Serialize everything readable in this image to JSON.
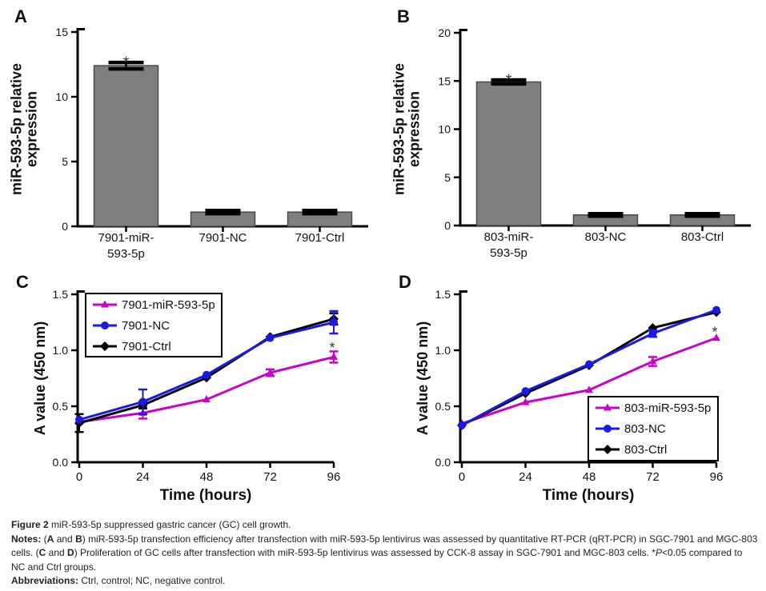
{
  "panels": {
    "A": {
      "letter": "A"
    },
    "B": {
      "letter": "B"
    },
    "C": {
      "letter": "C"
    },
    "D": {
      "letter": "D"
    }
  },
  "colors": {
    "bar_fill": "#7f7f7f",
    "bar_edge": "#4a4a4a",
    "axis": "#000000",
    "magenta": "#cc00cc",
    "blue": "#1a1ae6",
    "black": "#000000",
    "star": "#3a3a3a"
  },
  "chart_data": [
    {
      "id": "A",
      "type": "bar",
      "ylabel": "miR-593-5p relative expression",
      "ylabel_lines": [
        "miR-593-5p relative",
        "expression"
      ],
      "ylim": [
        0,
        15
      ],
      "yticks": [
        {
          "v": 0,
          "label": "0"
        },
        {
          "v": 5,
          "label": "5"
        },
        {
          "v": 10,
          "label": "10"
        },
        {
          "v": 15,
          "label": "15"
        }
      ],
      "categories": [
        [
          "7901-miR-",
          "593-5p"
        ],
        [
          "7901-NC"
        ],
        [
          "7901-Ctrl"
        ]
      ],
      "values": [
        12.4,
        1.1,
        1.1
      ],
      "errors": [
        0.25,
        0.12,
        0.12
      ],
      "significance": [
        {
          "index": 0,
          "symbol": "*"
        }
      ],
      "bar_fill": "#7f7f7f",
      "bar_edge": "#4a4a4a"
    },
    {
      "id": "B",
      "type": "bar",
      "ylabel": "miR-593-5p relative expression",
      "ylabel_lines": [
        "miR-593-5p relative",
        "expression"
      ],
      "ylim": [
        0,
        20
      ],
      "yticks": [
        {
          "v": 0,
          "label": "0"
        },
        {
          "v": 5,
          "label": "5"
        },
        {
          "v": 10,
          "label": "10"
        },
        {
          "v": 15,
          "label": "15"
        },
        {
          "v": 20,
          "label": "20"
        }
      ],
      "categories": [
        [
          "803-miR-",
          "593-5p"
        ],
        [
          "803-NC"
        ],
        [
          "803-Ctrl"
        ]
      ],
      "values": [
        14.9,
        1.1,
        1.1
      ],
      "errors": [
        0.2,
        0.12,
        0.12
      ],
      "significance": [
        {
          "index": 0,
          "symbol": "*"
        }
      ],
      "bar_fill": "#7f7f7f",
      "bar_edge": "#4a4a4a"
    },
    {
      "id": "C",
      "type": "line",
      "xlabel": "Time (hours)",
      "ylabel": "A value (450 nm)",
      "ylabel_lines": [
        "A value (450 nm)"
      ],
      "xlim": [
        0,
        96
      ],
      "ylim": [
        0,
        1.5
      ],
      "xticks": [
        {
          "v": 0,
          "label": "0"
        },
        {
          "v": 24,
          "label": "24"
        },
        {
          "v": 48,
          "label": "48"
        },
        {
          "v": 72,
          "label": "72"
        },
        {
          "v": 96,
          "label": "96"
        }
      ],
      "yticks": [
        {
          "v": 0,
          "label": "0.0"
        },
        {
          "v": 0.5,
          "label": "0.5"
        },
        {
          "v": 1,
          "label": "1.0"
        },
        {
          "v": 1.5,
          "label": "1.5"
        }
      ],
      "x": [
        0,
        24,
        48,
        72,
        96
      ],
      "series": [
        {
          "name": "7901-miR-593-5p",
          "color": "#cc00cc",
          "marker": "triangle",
          "values": [
            0.36,
            0.44,
            0.56,
            0.8,
            0.94
          ],
          "errors": [
            0.02,
            0.05,
            0.02,
            0.03,
            0.05
          ]
        },
        {
          "name": "7901-NC",
          "color": "#1a1ae6",
          "marker": "circle",
          "values": [
            0.38,
            0.54,
            0.78,
            1.11,
            1.25
          ],
          "errors": [
            0.02,
            0.11,
            0.02,
            0.02,
            0.1
          ]
        },
        {
          "name": "7901-Ctrl",
          "color": "#000000",
          "marker": "diamond",
          "values": [
            0.35,
            0.51,
            0.755,
            1.12,
            1.28
          ],
          "errors": [
            0.08,
            0.03,
            0.02,
            0.02,
            0.05
          ]
        }
      ],
      "legend_position": "top-left",
      "significance": [
        {
          "x": 96,
          "y": 1.05,
          "symbol": "*"
        }
      ]
    },
    {
      "id": "D",
      "type": "line",
      "xlabel": "Time (hours)",
      "ylabel": "A value (450 nm)",
      "ylabel_lines": [
        "A value (450 nm)"
      ],
      "xlim": [
        0,
        96
      ],
      "ylim": [
        0,
        1.5
      ],
      "xticks": [
        {
          "v": 0,
          "label": "0"
        },
        {
          "v": 24,
          "label": "24"
        },
        {
          "v": 48,
          "label": "48"
        },
        {
          "v": 72,
          "label": "72"
        },
        {
          "v": 96,
          "label": "96"
        }
      ],
      "yticks": [
        {
          "v": 0,
          "label": "0.0"
        },
        {
          "v": 0.5,
          "label": "0.5"
        },
        {
          "v": 1,
          "label": "1.0"
        },
        {
          "v": 1.5,
          "label": "1.5"
        }
      ],
      "x": [
        0,
        24,
        48,
        72,
        96
      ],
      "series": [
        {
          "name": "803-miR-593-5p",
          "color": "#cc00cc",
          "marker": "triangle",
          "values": [
            0.345,
            0.535,
            0.645,
            0.9,
            1.11
          ],
          "errors": [
            0.02,
            0.015,
            0.015,
            0.04,
            0.02
          ]
        },
        {
          "name": "803-NC",
          "color": "#1a1ae6",
          "marker": "circle",
          "values": [
            0.33,
            0.635,
            0.875,
            1.15,
            1.36
          ],
          "errors": [
            0.01,
            0.01,
            0.01,
            0.03,
            0.02
          ]
        },
        {
          "name": "803-Ctrl",
          "color": "#000000",
          "marker": "diamond",
          "values": [
            0.33,
            0.615,
            0.865,
            1.2,
            1.34
          ],
          "errors": [
            0.01,
            0.01,
            0.01,
            0.02,
            0.02
          ]
        }
      ],
      "legend_position": "bottom-right",
      "significance": [
        {
          "x": 96,
          "y": 1.19,
          "symbol": "*"
        }
      ]
    }
  ],
  "caption": {
    "lines": [
      {
        "runs": [
          {
            "t": "Figure 2",
            "b": true
          },
          {
            "t": " miR-593-5p suppressed gastric cancer (GC) cell growth."
          }
        ]
      },
      {
        "runs": [
          {
            "t": "Notes:",
            "b": true
          },
          {
            "t": " ("
          },
          {
            "t": "A",
            "b": true
          },
          {
            "t": " and "
          },
          {
            "t": "B",
            "b": true
          },
          {
            "t": ") miR-593-5p transfection efficiency after transfection with miR-593-5p lentivirus was assessed by quantitative RT-PCR (qRT-PCR) in SGC-7901 and MGC-803 cells. ("
          },
          {
            "t": "C",
            "b": true
          },
          {
            "t": " and "
          },
          {
            "t": "D",
            "b": true
          },
          {
            "t": ") Proliferation of GC cells after transfection with miR-593-5p lentivirus was assessed by CCK-8 assay in SGC-7901 and MGC-803 cells. *"
          },
          {
            "t": "P",
            "i": true
          },
          {
            "t": "<0.05 compared to NC and Ctrl groups."
          }
        ]
      },
      {
        "runs": [
          {
            "t": "Abbreviations:",
            "b": true
          },
          {
            "t": " Ctrl, control; NC, negative control."
          }
        ]
      }
    ]
  }
}
